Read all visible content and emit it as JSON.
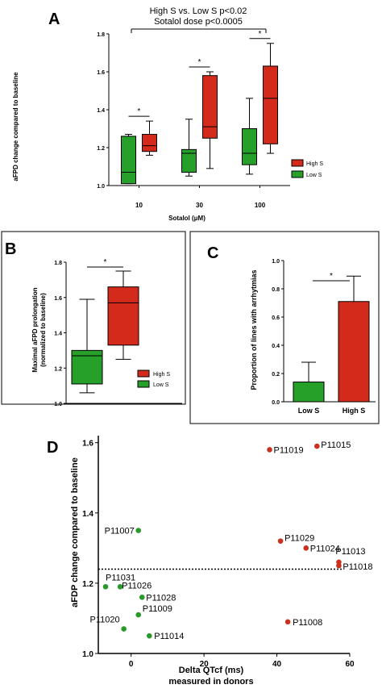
{
  "chart_data": [
    {
      "panel": "A",
      "type": "box",
      "annotation_lines": [
        "High S vs. Low S p<0.02",
        "Sotalol dose p<0.0005"
      ],
      "xlabel": "Sotalol (μM)",
      "ylabel": "aFPD change compared to baseline",
      "categories": [
        "10",
        "30",
        "100"
      ],
      "yticks": [
        "1.0",
        "1.2",
        "1.4",
        "1.6",
        "1.8"
      ],
      "ylim": [
        1.0,
        1.8
      ],
      "significance": [
        "*",
        "*",
        "*"
      ],
      "legend": "right",
      "series": [
        {
          "name": "High S",
          "color": "#d42a1c",
          "boxes": [
            {
              "min": 1.16,
              "q1": 1.18,
              "median": 1.21,
              "q3": 1.27,
              "max": 1.34
            },
            {
              "min": 1.09,
              "q1": 1.25,
              "median": 1.31,
              "q3": 1.58,
              "max": 1.6
            },
            {
              "min": 1.17,
              "q1": 1.22,
              "median": 1.46,
              "q3": 1.63,
              "max": 1.75
            }
          ]
        },
        {
          "name": "Low S",
          "color": "#27a02a",
          "boxes": [
            {
              "min": 1.01,
              "q1": 1.01,
              "median": 1.07,
              "q3": 1.26,
              "max": 1.27
            },
            {
              "min": 1.05,
              "q1": 1.07,
              "median": 1.17,
              "q3": 1.19,
              "max": 1.35
            },
            {
              "min": 1.06,
              "q1": 1.11,
              "median": 1.17,
              "q3": 1.3,
              "max": 1.46
            }
          ]
        }
      ]
    },
    {
      "panel": "B",
      "type": "box",
      "ylabel_lines": [
        "Maximal aFPD prolongation",
        "(normalized to baseline)"
      ],
      "yticks": [
        "1.0",
        "1.2",
        "1.4",
        "1.6",
        "1.8"
      ],
      "ylim": [
        1.0,
        1.8
      ],
      "significance": "*",
      "legend": "right",
      "series": [
        {
          "name": "Low S",
          "color": "#27a02a",
          "box": {
            "min": 1.06,
            "q1": 1.11,
            "median": 1.27,
            "q3": 1.3,
            "max": 1.59
          }
        },
        {
          "name": "High S",
          "color": "#d42a1c",
          "box": {
            "min": 1.25,
            "q1": 1.33,
            "median": 1.57,
            "q3": 1.66,
            "max": 1.75
          }
        }
      ]
    },
    {
      "panel": "C",
      "type": "bar",
      "ylabel": "Proportion of lines with arrhytmias",
      "categories": [
        "Low S",
        "High S"
      ],
      "values": [
        0.14,
        0.71
      ],
      "errors": [
        0.14,
        0.18
      ],
      "colors": [
        "#27a02a",
        "#d42a1c"
      ],
      "yticks": [
        "0.0",
        "0.2",
        "0.4",
        "0.6",
        "0.8",
        "1.0"
      ],
      "ylim": [
        0,
        1.0
      ],
      "significance": "*"
    },
    {
      "panel": "D",
      "type": "scatter",
      "xlabel_lines": [
        "Delta QTcf  (ms)",
        "measured in donors"
      ],
      "ylabel": "aFDP change compared to baseline",
      "xticks": [
        "0",
        "20",
        "40",
        "60"
      ],
      "yticks": [
        "1.0",
        "1.2",
        "1.4",
        "1.6"
      ],
      "xlim": [
        -9,
        60
      ],
      "ylim": [
        1.0,
        1.62
      ],
      "threshold_y": 1.24,
      "points": [
        {
          "label": "P11019",
          "x": 38,
          "y": 1.58,
          "color": "#c8321e"
        },
        {
          "label": "P11015",
          "x": 51,
          "y": 1.59,
          "color": "#c8321e"
        },
        {
          "label": "P11029",
          "x": 41,
          "y": 1.32,
          "color": "#c8321e"
        },
        {
          "label": "P11024",
          "x": 48,
          "y": 1.3,
          "color": "#c8321e"
        },
        {
          "label": "P11013",
          "x": 57,
          "y": 1.26,
          "color": "#c8321e"
        },
        {
          "label": "P11018",
          "x": 57,
          "y": 1.25,
          "color": "#c8321e"
        },
        {
          "label": "P11008",
          "x": 43,
          "y": 1.09,
          "color": "#c8321e"
        },
        {
          "label": "P11007",
          "x": 2,
          "y": 1.35,
          "color": "#279a2a"
        },
        {
          "label": "P11031",
          "x": -7,
          "y": 1.19,
          "color": "#279a2a"
        },
        {
          "label": "P11026",
          "x": -3,
          "y": 1.19,
          "color": "#279a2a"
        },
        {
          "label": "P11028",
          "x": 3,
          "y": 1.16,
          "color": "#279a2a"
        },
        {
          "label": "P11009",
          "x": 2,
          "y": 1.11,
          "color": "#279a2a"
        },
        {
          "label": "P11020",
          "x": -2,
          "y": 1.07,
          "color": "#279a2a"
        },
        {
          "label": "P11014",
          "x": 5,
          "y": 1.05,
          "color": "#279a2a"
        }
      ]
    }
  ]
}
